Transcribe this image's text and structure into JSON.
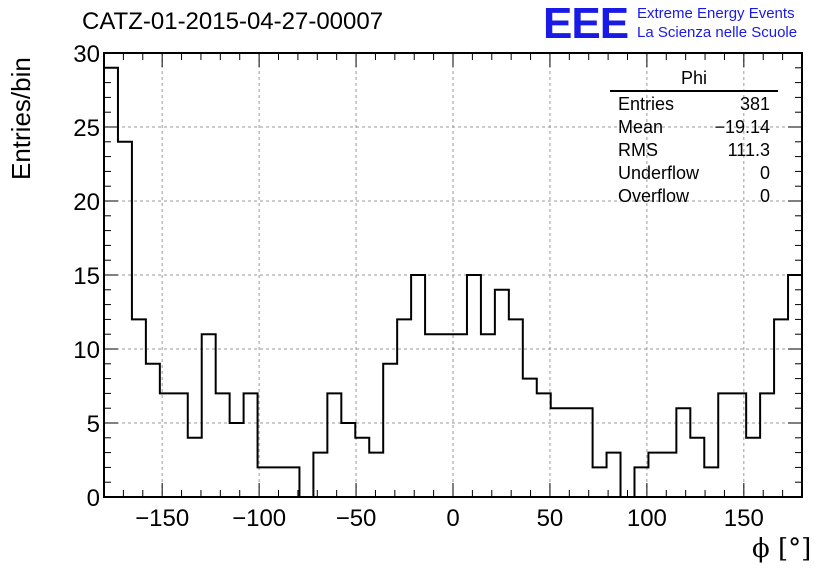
{
  "header": {
    "title": "CATZ-01-2015-04-27-00007",
    "logo": "EEE",
    "logo_line1": "Extreme Energy Events",
    "logo_line2": "La Scienza nelle Scuole"
  },
  "stats": {
    "title": "Phi",
    "rows": [
      {
        "label": "Entries",
        "value": "381"
      },
      {
        "label": "Mean",
        "value": "−19.14"
      },
      {
        "label": "RMS",
        "value": "111.3"
      },
      {
        "label": "Underflow",
        "value": "0"
      },
      {
        "label": "Overflow",
        "value": "0"
      }
    ]
  },
  "colors": {
    "logo": "#1a1ae6",
    "line": "#000000",
    "grid": "#9a9a9a"
  },
  "chart_data": {
    "type": "histogram",
    "xlabel": "ϕ [°]",
    "ylabel": "Entries/bin",
    "xlim": [
      -180,
      180
    ],
    "ylim": [
      0,
      30
    ],
    "bin_width": 7.2,
    "xticks": [
      -150,
      -100,
      -50,
      0,
      50,
      100,
      150
    ],
    "yticks": [
      0,
      5,
      10,
      15,
      20,
      25,
      30
    ],
    "xtick_labels": [
      "−150",
      "−100",
      "−50",
      "0",
      "50",
      "100",
      "150"
    ],
    "ytick_labels": [
      "0",
      "5",
      "10",
      "15",
      "20",
      "25",
      "30"
    ],
    "grid": true,
    "values": [
      29,
      24,
      12,
      9,
      7,
      7,
      4,
      11,
      7,
      5,
      7,
      2,
      2,
      2,
      0,
      3,
      7,
      5,
      4,
      3,
      9,
      12,
      15,
      11,
      11,
      11,
      15,
      11,
      14,
      12,
      8,
      7,
      6,
      6,
      6,
      2,
      3,
      0,
      2,
      3,
      3,
      6,
      4,
      2,
      7,
      7,
      4,
      7,
      12,
      15
    ]
  }
}
